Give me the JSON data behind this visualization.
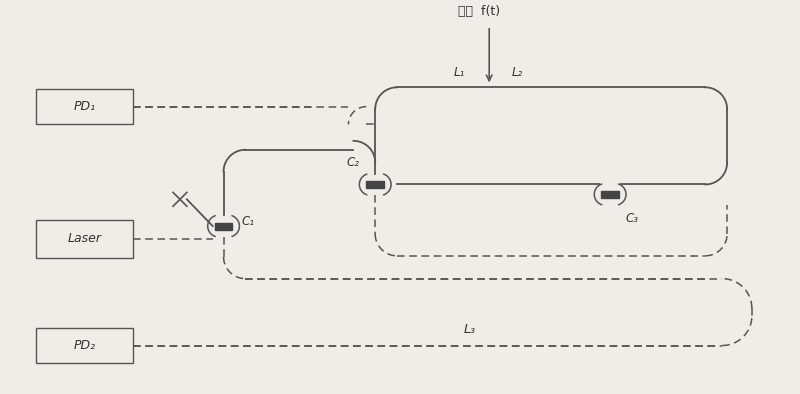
{
  "bg_color": "#f0ede8",
  "line_color": "#555555",
  "text_color": "#333333",
  "title_text": "扮动  f(t)",
  "label_L1": "L₁",
  "label_L2": "L₂",
  "label_L3": "L₃",
  "label_C1": "C₁",
  "label_C2": "C₂",
  "label_C3": "C₃",
  "label_PD1": "PD₁",
  "label_PD2": "PD₂",
  "label_Laser": "Laser",
  "figsize": [
    8.0,
    3.94
  ],
  "dpi": 100,
  "lw_solid": 1.3,
  "lw_dashed": 1.1,
  "dash_pattern": [
    5,
    3
  ]
}
